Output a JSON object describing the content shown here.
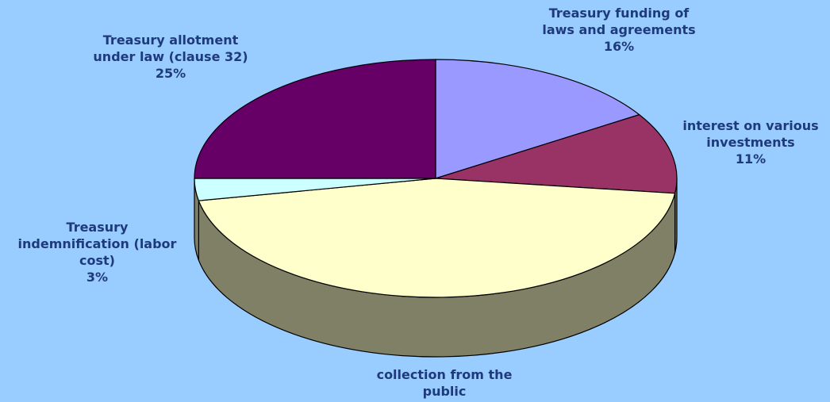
{
  "background": "#99ccff",
  "label_color": "#1f3a7a",
  "chart_data": {
    "type": "pie",
    "style": "3d",
    "start_angle_deg": 90,
    "direction": "clockwise",
    "slices": [
      {
        "label_lines": [
          "Treasury funding of",
          "laws and agreements"
        ],
        "value": 16,
        "value_label": "16%",
        "color": "#9999ff"
      },
      {
        "label_lines": [
          "interest on various",
          "investments"
        ],
        "value": 11,
        "value_label": "11%",
        "color": "#993366"
      },
      {
        "label_lines": [
          "collection from the",
          "public"
        ],
        "value": 45,
        "value_label": "",
        "color": "#ffffcc"
      },
      {
        "label_lines": [
          "Treasury",
          "indemnification (labor",
          "cost)"
        ],
        "value": 3,
        "value_label": "3%",
        "color": "#ccffff"
      },
      {
        "label_lines": [
          "Treasury allotment",
          "under law (clause 32)"
        ],
        "value": 25,
        "value_label": "25%",
        "color": "#660066"
      }
    ]
  }
}
